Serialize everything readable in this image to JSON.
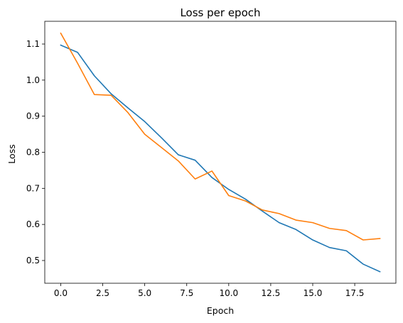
{
  "chart_data": {
    "type": "line",
    "title": "Loss per epoch",
    "xlabel": "Epoch",
    "ylabel": "Loss",
    "xlim": [
      -0.95,
      19.95
    ],
    "ylim": [
      0.437,
      1.163
    ],
    "grid": false,
    "legend": "none",
    "x_ticks": [
      0.0,
      2.5,
      5.0,
      7.5,
      10.0,
      12.5,
      15.0,
      17.5
    ],
    "x_tick_labels": [
      "0.0",
      "2.5",
      "5.0",
      "7.5",
      "10.0",
      "12.5",
      "15.0",
      "17.5"
    ],
    "y_ticks": [
      0.5,
      0.6,
      0.7,
      0.8,
      0.9,
      1.0,
      1.1
    ],
    "y_tick_labels": [
      "0.5",
      "0.6",
      "0.7",
      "0.8",
      "0.9",
      "1.0",
      "1.1"
    ],
    "x": [
      0,
      1,
      2,
      3,
      4,
      5,
      6,
      7,
      8,
      9,
      10,
      11,
      12,
      13,
      14,
      15,
      16,
      17,
      18,
      19
    ],
    "series": [
      {
        "color": "#1f77b4",
        "values": [
          1.097,
          1.077,
          1.012,
          0.962,
          0.923,
          0.885,
          0.84,
          0.793,
          0.778,
          0.73,
          0.697,
          0.67,
          0.637,
          0.605,
          0.586,
          0.557,
          0.536,
          0.527,
          0.49,
          0.469
        ]
      },
      {
        "color": "#ff7f0e",
        "values": [
          1.13,
          1.047,
          0.96,
          0.958,
          0.91,
          0.85,
          0.813,
          0.776,
          0.726,
          0.748,
          0.68,
          0.665,
          0.64,
          0.63,
          0.612,
          0.605,
          0.589,
          0.583,
          0.557,
          0.561
        ]
      }
    ]
  }
}
